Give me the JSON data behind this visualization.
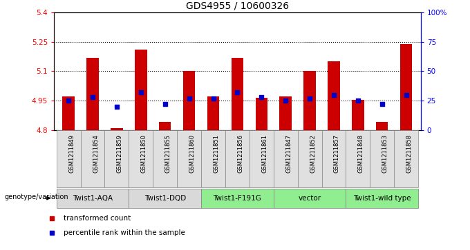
{
  "title": "GDS4955 / 10600326",
  "samples": [
    "GSM1211849",
    "GSM1211854",
    "GSM1211859",
    "GSM1211850",
    "GSM1211855",
    "GSM1211860",
    "GSM1211851",
    "GSM1211856",
    "GSM1211861",
    "GSM1211847",
    "GSM1211852",
    "GSM1211857",
    "GSM1211848",
    "GSM1211853",
    "GSM1211858"
  ],
  "bar_values": [
    4.97,
    5.17,
    4.81,
    5.21,
    4.84,
    5.1,
    4.97,
    5.17,
    4.965,
    4.97,
    5.1,
    5.15,
    4.955,
    4.84,
    5.24
  ],
  "dot_values": [
    25,
    28,
    20,
    32,
    22,
    27,
    27,
    32,
    28,
    25,
    27,
    30,
    25,
    22,
    30
  ],
  "ylim_left": [
    4.8,
    5.4
  ],
  "ylim_right": [
    0,
    100
  ],
  "yticks_left": [
    4.8,
    4.95,
    5.1,
    5.25,
    5.4
  ],
  "yticks_right": [
    0,
    25,
    50,
    75,
    100
  ],
  "ytick_labels_left": [
    "4.8",
    "4.95",
    "5.1",
    "5.25",
    "5.4"
  ],
  "ytick_labels_right": [
    "0",
    "25",
    "50",
    "75",
    "100%"
  ],
  "hlines": [
    4.95,
    5.1,
    5.25
  ],
  "groups": [
    {
      "label": "Twist1-AQA",
      "indices": [
        0,
        1,
        2
      ],
      "color": "#d9d9d9"
    },
    {
      "label": "Twist1-DQD",
      "indices": [
        3,
        4,
        5
      ],
      "color": "#d9d9d9"
    },
    {
      "label": "Twist1-F191G",
      "indices": [
        6,
        7,
        8
      ],
      "color": "#90EE90"
    },
    {
      "label": "vector",
      "indices": [
        9,
        10,
        11
      ],
      "color": "#90EE90"
    },
    {
      "label": "Twist1-wild type",
      "indices": [
        12,
        13,
        14
      ],
      "color": "#90EE90"
    }
  ],
  "bar_color": "#cc0000",
  "dot_color": "#0000cc",
  "bg_color": "#ffffff",
  "genotype_label": "genotype/variation",
  "legend_bar": "transformed count",
  "legend_dot": "percentile rank within the sample",
  "bar_bottom": 4.8
}
